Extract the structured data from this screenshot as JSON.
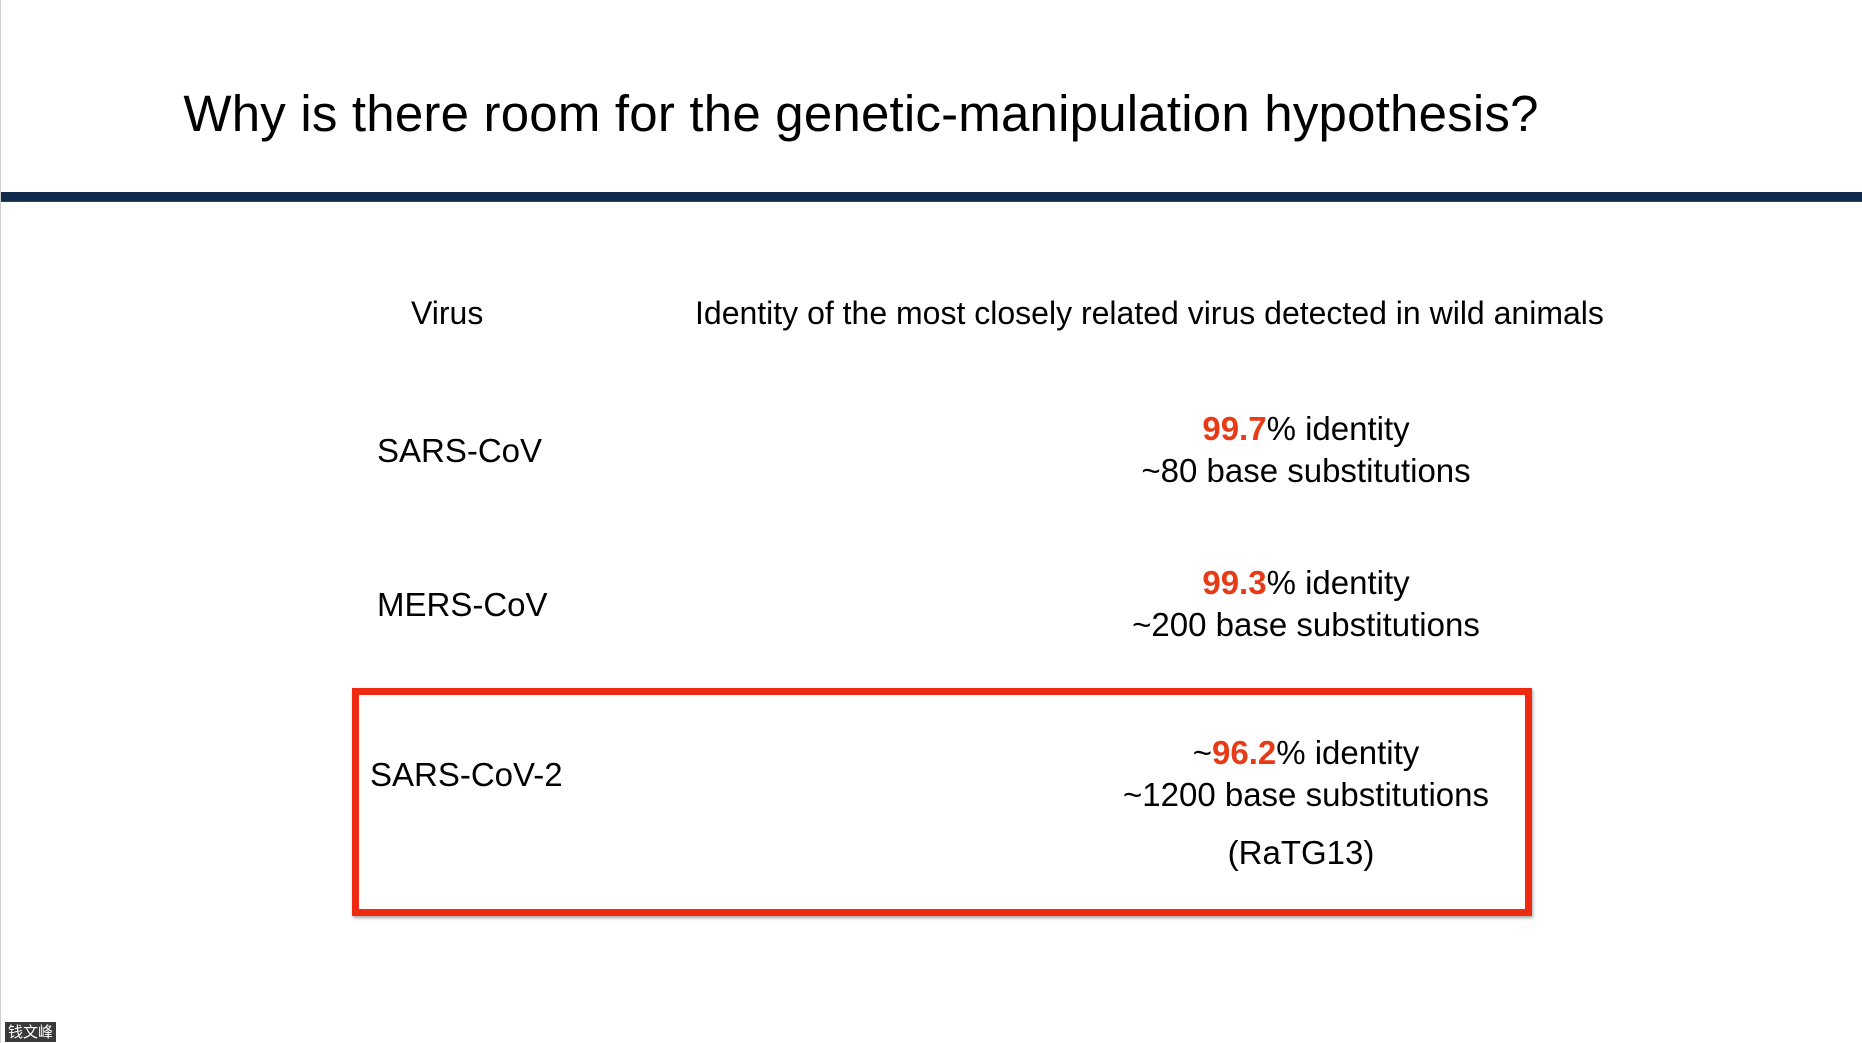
{
  "slide": {
    "title": "Why is there room for the genetic-manipulation hypothesis?",
    "accent_color": "#ee2b10",
    "rule_color": "#0f2a4a"
  },
  "table": {
    "header_virus": "Virus",
    "header_identity": "Identity of the most closely related virus detected in wild animals",
    "rows": [
      {
        "virus": "SARS-CoV",
        "identity_prefix": "",
        "identity_value": "99.7",
        "identity_suffix": "% identity",
        "substitutions": "~80 base substitutions",
        "note": ""
      },
      {
        "virus": "MERS-CoV",
        "identity_prefix": "",
        "identity_value": "99.3",
        "identity_suffix": "% identity",
        "substitutions": "~200 base substitutions",
        "note": ""
      },
      {
        "virus": "SARS-CoV-2",
        "identity_prefix": "~",
        "identity_value": "96.2",
        "identity_suffix": "% identity",
        "substitutions": "~1200 base substitutions",
        "note": "(RaTG13)",
        "highlighted": true
      }
    ]
  },
  "overlay": {
    "name_tag": "钱文峰"
  }
}
